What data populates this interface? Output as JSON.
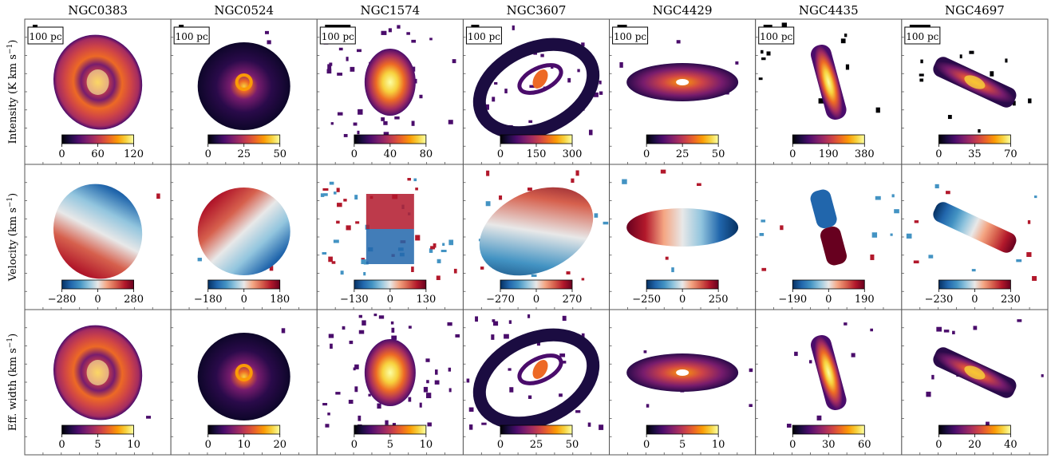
{
  "chart_data": {
    "type": "heatmap",
    "galaxies": [
      "NGC0383",
      "NGC0524",
      "NGC1574",
      "NGC3607",
      "NGC4429",
      "NGC4435",
      "NGC4697"
    ],
    "scale_bar_label": "100 pc",
    "rows": [
      {
        "id": "intensity",
        "ylabel_main": "Intensity (K km s",
        "ylabel_sup": "−1",
        "ylabel_tail": ")",
        "colormap": "inferno",
        "colorbars": [
          {
            "ticks": [
              "0",
              "60",
              "120"
            ]
          },
          {
            "ticks": [
              "0",
              "25",
              "50"
            ]
          },
          {
            "ticks": [
              "0",
              "40",
              "80"
            ]
          },
          {
            "ticks": [
              "0",
              "150",
              "300"
            ]
          },
          {
            "ticks": [
              "0",
              "25",
              "50"
            ]
          },
          {
            "ticks": [
              "0",
              "190",
              "380"
            ]
          },
          {
            "ticks": [
              "0",
              "35",
              "70"
            ]
          }
        ]
      },
      {
        "id": "velocity",
        "ylabel_main": "Velocity (km s",
        "ylabel_sup": "−1",
        "ylabel_tail": ")",
        "colormap": "diverging",
        "colorbars": [
          {
            "ticks": [
              "−280",
              "0",
              "280"
            ]
          },
          {
            "ticks": [
              "−180",
              "0",
              "180"
            ]
          },
          {
            "ticks": [
              "−130",
              "0",
              "130"
            ]
          },
          {
            "ticks": [
              "−270",
              "0",
              "270"
            ]
          },
          {
            "ticks": [
              "−250",
              "0",
              "250"
            ]
          },
          {
            "ticks": [
              "−190",
              "0",
              "190"
            ]
          },
          {
            "ticks": [
              "−230",
              "0",
              "230"
            ]
          }
        ]
      },
      {
        "id": "effwidth",
        "ylabel_main": "Eff. width (km s",
        "ylabel_sup": "−1",
        "ylabel_tail": ")",
        "colormap": "inferno",
        "colorbars": [
          {
            "ticks": [
              "0",
              "5",
              "10"
            ]
          },
          {
            "ticks": [
              "0",
              "10",
              "20"
            ]
          },
          {
            "ticks": [
              "0",
              "5",
              "10"
            ]
          },
          {
            "ticks": [
              "0",
              "25",
              "50"
            ]
          },
          {
            "ticks": [
              "0",
              "5",
              "10"
            ]
          },
          {
            "ticks": [
              "0",
              "30",
              "60"
            ]
          },
          {
            "ticks": [
              "0",
              "20",
              "40"
            ]
          }
        ]
      }
    ],
    "colors": {
      "inferno": [
        "#000004",
        "#1b0c41",
        "#4a0c6b",
        "#781c6d",
        "#a52c60",
        "#cf4446",
        "#ed6925",
        "#fb9b06",
        "#f7d13d",
        "#fcffa4"
      ],
      "diverging": [
        "#053061",
        "#2166ac",
        "#4393c3",
        "#92c5de",
        "#e8e8e8",
        "#f4a582",
        "#d6604d",
        "#b2182b",
        "#67001f"
      ]
    }
  }
}
